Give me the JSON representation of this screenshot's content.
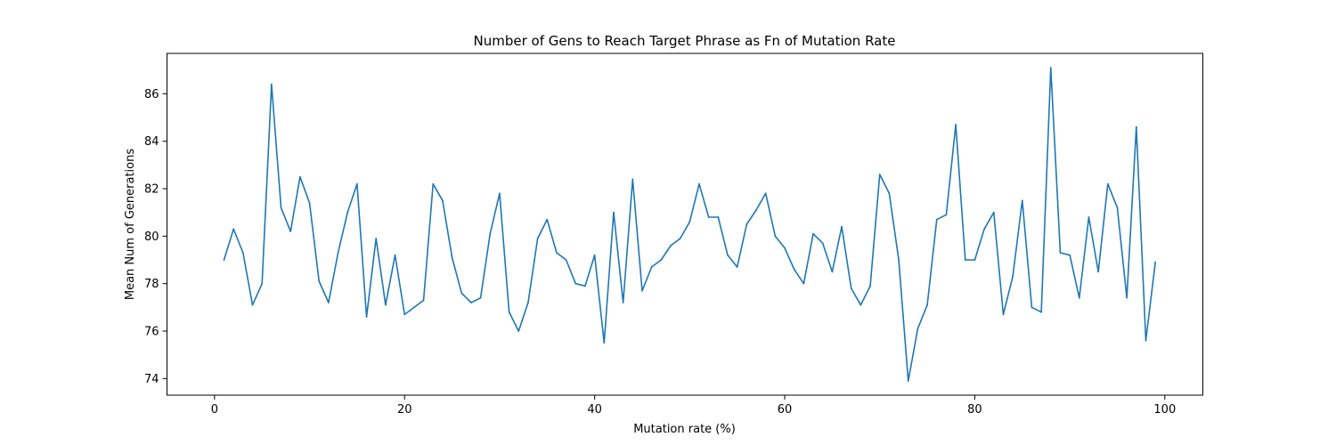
{
  "chart_data": {
    "type": "line",
    "title": "Number of Gens to Reach Target Phrase as Fn of Mutation Rate",
    "xlabel": "Mutation rate (%)",
    "ylabel": "Mean Num of Generations",
    "xlim": [
      -5,
      104
    ],
    "ylim": [
      73.3,
      87.7
    ],
    "xticks": [
      0,
      20,
      40,
      60,
      80,
      100
    ],
    "yticks": [
      74,
      76,
      78,
      80,
      82,
      84,
      86
    ],
    "grid": false,
    "series": [
      {
        "color": "#1f77b4",
        "x": [
          1,
          2,
          3,
          4,
          5,
          6,
          7,
          8,
          9,
          10,
          11,
          12,
          13,
          14,
          15,
          16,
          17,
          18,
          19,
          20,
          21,
          22,
          23,
          24,
          25,
          26,
          27,
          28,
          29,
          30,
          31,
          32,
          33,
          34,
          35,
          36,
          37,
          38,
          39,
          40,
          41,
          42,
          43,
          44,
          45,
          46,
          47,
          48,
          49,
          50,
          51,
          52,
          53,
          54,
          55,
          56,
          57,
          58,
          59,
          60,
          61,
          62,
          63,
          64,
          65,
          66,
          67,
          68,
          69,
          70,
          71,
          72,
          73,
          74,
          75,
          76,
          77,
          78,
          79,
          80,
          81,
          82,
          83,
          84,
          85,
          86,
          87,
          88,
          89,
          90,
          91,
          92,
          93,
          94,
          95,
          96,
          97,
          98,
          99
        ],
        "y": [
          79.0,
          80.3,
          79.3,
          77.1,
          78.0,
          86.4,
          81.2,
          80.2,
          82.5,
          81.4,
          78.1,
          77.2,
          79.3,
          81.0,
          82.2,
          76.6,
          79.9,
          77.1,
          79.2,
          76.7,
          77.0,
          77.3,
          82.2,
          81.5,
          79.1,
          77.6,
          77.2,
          77.4,
          80.1,
          81.8,
          76.8,
          76.0,
          77.2,
          79.9,
          80.7,
          79.3,
          79.0,
          78.0,
          77.9,
          79.2,
          75.5,
          81.0,
          77.2,
          82.4,
          77.7,
          78.7,
          79.0,
          79.6,
          79.9,
          80.6,
          82.2,
          80.8,
          80.8,
          79.2,
          78.7,
          80.5,
          81.1,
          81.8,
          80.0,
          79.5,
          78.6,
          78.0,
          80.1,
          79.7,
          78.5,
          80.4,
          77.8,
          77.1,
          77.9,
          82.6,
          81.8,
          79.0,
          73.9,
          76.1,
          77.1,
          80.7,
          80.9,
          84.7,
          79.0,
          79.0,
          80.3,
          81.0,
          76.7,
          78.3,
          81.5,
          77.0,
          76.8,
          87.1,
          79.3,
          79.2,
          77.4,
          80.8,
          78.5,
          82.2,
          81.2,
          77.4,
          84.6,
          75.6,
          78.9
        ]
      }
    ]
  }
}
